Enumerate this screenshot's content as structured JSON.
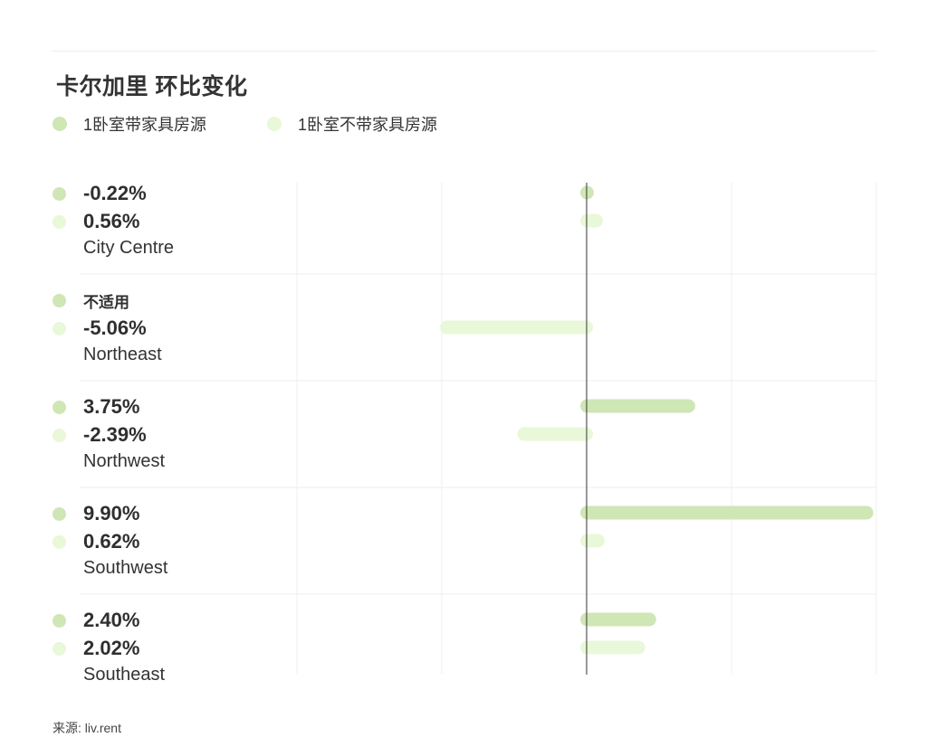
{
  "title": "卡尔加里 环比变化",
  "legend": [
    {
      "label": "1卧室带家具房源",
      "color": "#cfe6b5"
    },
    {
      "label": "1卧室不带家具房源",
      "color": "#e8f8d8"
    }
  ],
  "source": "来源: liv.rent",
  "chart_data": {
    "type": "bar",
    "orientation": "horizontal",
    "title": "卡尔加里 环比变化",
    "categories": [
      "City Centre",
      "Northeast",
      "Northwest",
      "Southwest",
      "Southeast"
    ],
    "series": [
      {
        "name": "1卧室带家具房源",
        "values": [
          -0.22,
          null,
          3.75,
          9.9,
          2.4
        ],
        "labels": [
          "-0.22%",
          "不适用",
          "3.75%",
          "9.90%",
          "2.40%"
        ],
        "color": "#cfe6b5"
      },
      {
        "name": "1卧室不带家具房源",
        "values": [
          0.56,
          -5.06,
          -2.39,
          0.62,
          2.02
        ],
        "labels": [
          "0.56%",
          "-5.06%",
          "-2.39%",
          "0.62%",
          "2.02%"
        ],
        "color": "#e8f8d8"
      }
    ],
    "xlim": [
      -10,
      10
    ],
    "grid": true,
    "legend_position": "top-left"
  }
}
